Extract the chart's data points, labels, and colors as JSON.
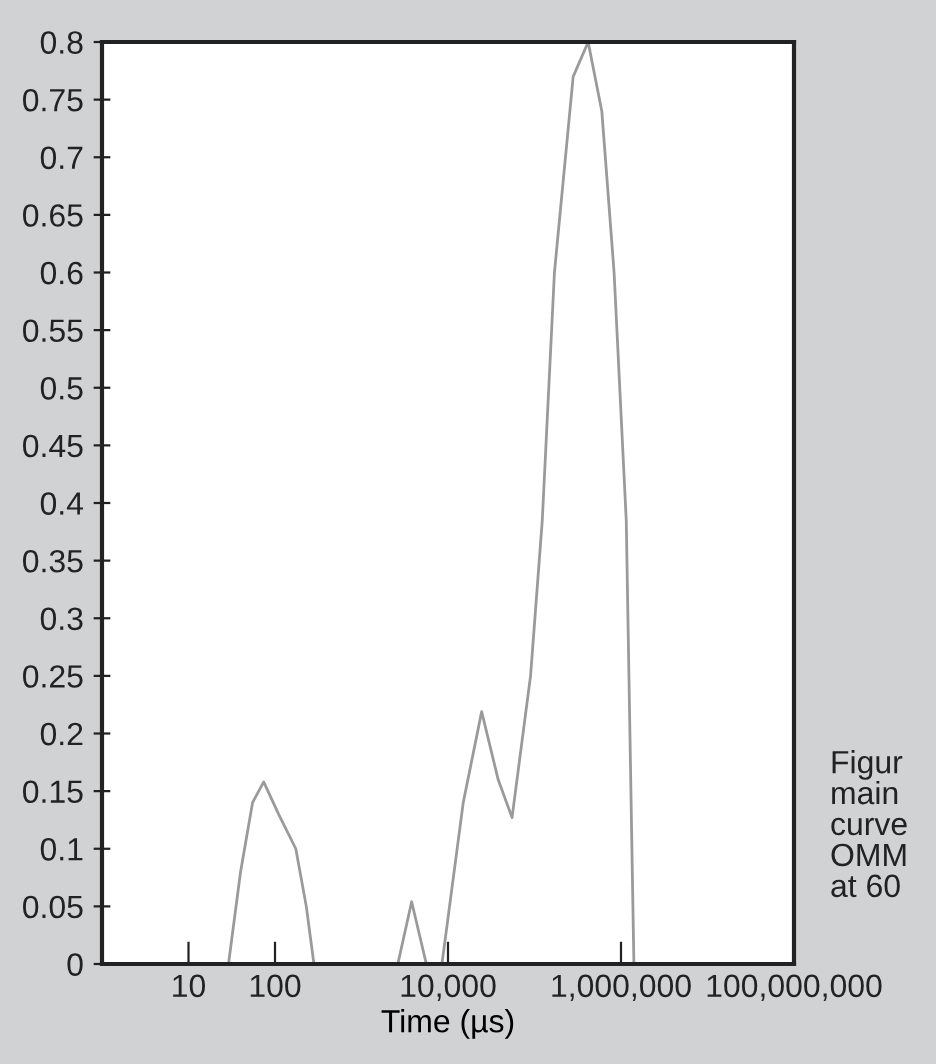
{
  "chart_data": {
    "type": "line",
    "xlabel": "Time (µs)",
    "log": "x",
    "x": [
      29,
      40,
      55,
      74,
      110,
      174,
      230,
      282,
      1000,
      2630,
      3800,
      5620,
      7000,
      8510,
      15000,
      24500,
      38000,
      55000,
      90000,
      123000,
      170000,
      280000,
      417000,
      600000,
      832000,
      1150000,
      1410000
    ],
    "series": [
      {
        "color": "#9a9a9a",
        "values": [
          0,
          0.08,
          0.14,
          0.158,
          0.13,
          0.1,
          0.05,
          0,
          null,
          0,
          0.054,
          0,
          null,
          0,
          0.14,
          0.219,
          0.16,
          0.127,
          0.25,
          0.385,
          0.6,
          0.77,
          0.8,
          0.74,
          0.6,
          0.385,
          0
        ]
      }
    ],
    "xlim": [
      1,
      100000000
    ],
    "xticks": [
      {
        "value": 10,
        "label": "10"
      },
      {
        "value": 100,
        "label": "100"
      },
      {
        "value": 10000,
        "label": "10,000"
      },
      {
        "value": 1000000,
        "label": "1,000,000"
      },
      {
        "value": 100000000,
        "label": "100,000,000"
      }
    ],
    "ylim": [
      0,
      0.8
    ],
    "yticks": [
      0,
      0.05,
      0.1,
      0.15,
      0.2,
      0.25,
      0.3,
      0.35,
      0.4,
      0.45,
      0.5,
      0.55,
      0.6,
      0.65,
      0.7,
      0.75,
      0.8
    ],
    "grid": false,
    "annotations": [
      "Figur\nmain\ncurve\nOMM\nat 60"
    ]
  }
}
